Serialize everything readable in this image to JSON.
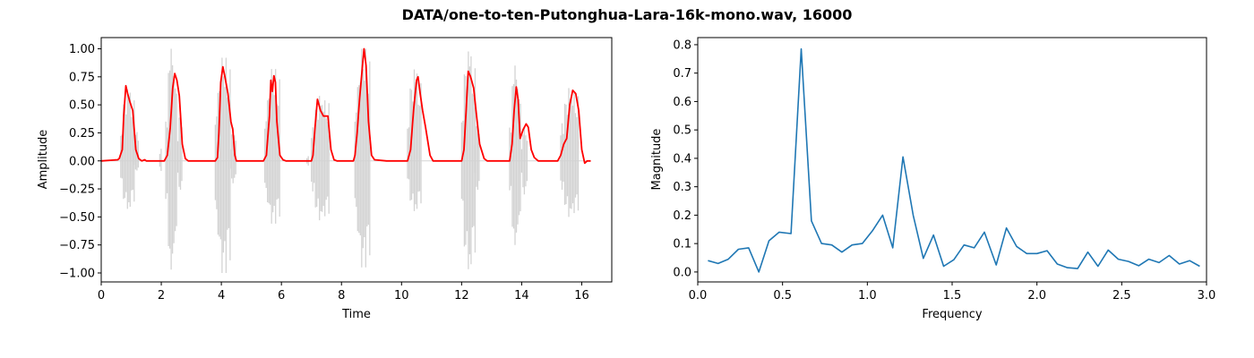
{
  "figure": {
    "title": "DATA/one-to-ten-Putonghua-Lara-16k-mono.wav, 16000"
  },
  "chart_data": [
    {
      "type": "line",
      "xlabel": "Time",
      "ylabel": "Amplitude",
      "xlim": [
        0,
        17
      ],
      "ylim": [
        -1.08,
        1.1
      ],
      "xticks": [
        0,
        2,
        4,
        6,
        8,
        10,
        12,
        14,
        16
      ],
      "yticks": [
        -1.0,
        -0.75,
        -0.5,
        -0.25,
        0.0,
        0.25,
        0.5,
        0.75,
        1.0
      ],
      "ytick_labels": [
        "−1.00",
        "−0.75",
        "−0.50",
        "−0.25",
        "0.00",
        "0.25",
        "0.50",
        "0.75",
        "1.00"
      ],
      "grid": false,
      "colors": {
        "waveform": "#d3d3d3",
        "envelope": "#ff0000"
      },
      "waveform_segments": [
        {
          "start": 0.65,
          "end": 1.1,
          "max": 0.64,
          "min": -0.43
        },
        {
          "start": 1.1,
          "end": 1.25,
          "max": 0.3,
          "min": -0.1
        },
        {
          "start": 1.95,
          "end": 2.0,
          "max": 0.18,
          "min": -0.15
        },
        {
          "start": 2.15,
          "end": 2.55,
          "max": 1.0,
          "min": -0.97
        },
        {
          "start": 2.55,
          "end": 2.7,
          "max": 0.5,
          "min": -0.3
        },
        {
          "start": 3.8,
          "end": 4.3,
          "max": 0.92,
          "min": -1.0
        },
        {
          "start": 4.3,
          "end": 4.5,
          "max": 0.3,
          "min": -0.2
        },
        {
          "start": 5.45,
          "end": 5.95,
          "max": 0.82,
          "min": -0.56
        },
        {
          "start": 6.85,
          "end": 6.9,
          "max": 0.07,
          "min": -0.07
        },
        {
          "start": 7.0,
          "end": 7.6,
          "max": 0.58,
          "min": -0.53
        },
        {
          "start": 8.45,
          "end": 8.95,
          "max": 1.0,
          "min": -0.95
        },
        {
          "start": 10.2,
          "end": 10.65,
          "max": 0.82,
          "min": -0.45
        },
        {
          "start": 12.0,
          "end": 12.45,
          "max": 0.98,
          "min": -0.97
        },
        {
          "start": 12.45,
          "end": 12.6,
          "max": 0.4,
          "min": -0.3
        },
        {
          "start": 13.6,
          "end": 14.0,
          "max": 0.85,
          "min": -0.75
        },
        {
          "start": 14.0,
          "end": 14.2,
          "max": 0.3,
          "min": -0.3
        },
        {
          "start": 15.3,
          "end": 15.9,
          "max": 0.65,
          "min": -0.5
        }
      ],
      "series": [
        {
          "name": "",
          "x": [
            0.0,
            0.55,
            0.6,
            0.7,
            0.75,
            0.82,
            0.88,
            0.95,
            1.05,
            1.15,
            1.25,
            1.35,
            1.45,
            1.5,
            2.1,
            2.2,
            2.3,
            2.38,
            2.45,
            2.52,
            2.6,
            2.7,
            2.8,
            2.9,
            3.0,
            3.8,
            3.87,
            3.92,
            3.98,
            4.05,
            4.12,
            4.22,
            4.32,
            4.38,
            4.45,
            4.5,
            5.4,
            5.5,
            5.6,
            5.65,
            5.7,
            5.75,
            5.8,
            5.85,
            5.95,
            6.05,
            6.15,
            6.3,
            7.0,
            7.05,
            7.12,
            7.2,
            7.3,
            7.4,
            7.55,
            7.65,
            7.75,
            7.85,
            7.95,
            8.4,
            8.45,
            8.52,
            8.6,
            8.7,
            8.75,
            8.82,
            8.9,
            9.0,
            9.1,
            9.5,
            10.2,
            10.3,
            10.4,
            10.5,
            10.55,
            10.62,
            10.7,
            10.8,
            10.95,
            11.05,
            12.0,
            12.08,
            12.15,
            12.22,
            12.3,
            12.4,
            12.5,
            12.6,
            12.75,
            12.85,
            13.6,
            13.68,
            13.75,
            13.82,
            13.88,
            13.95,
            14.05,
            14.15,
            14.22,
            14.32,
            14.42,
            14.55,
            14.65,
            15.2,
            15.3,
            15.4,
            15.5,
            15.6,
            15.7,
            15.8,
            15.9,
            16.0,
            16.1,
            16.18,
            16.25,
            16.3
          ],
          "y": [
            0.0,
            0.01,
            0.02,
            0.1,
            0.4,
            0.67,
            0.6,
            0.53,
            0.45,
            0.1,
            0.02,
            0.0,
            0.01,
            0.0,
            0.0,
            0.05,
            0.3,
            0.65,
            0.78,
            0.72,
            0.58,
            0.15,
            0.02,
            0.0,
            0.0,
            0.0,
            0.03,
            0.25,
            0.7,
            0.84,
            0.75,
            0.6,
            0.35,
            0.28,
            0.05,
            0.0,
            0.0,
            0.05,
            0.4,
            0.72,
            0.62,
            0.76,
            0.7,
            0.35,
            0.05,
            0.01,
            0.0,
            0.0,
            0.0,
            0.05,
            0.3,
            0.55,
            0.45,
            0.4,
            0.4,
            0.1,
            0.01,
            0.0,
            0.0,
            0.0,
            0.05,
            0.25,
            0.55,
            0.85,
            1.0,
            0.85,
            0.35,
            0.05,
            0.01,
            0.0,
            0.0,
            0.1,
            0.45,
            0.72,
            0.75,
            0.6,
            0.45,
            0.3,
            0.05,
            0.0,
            0.0,
            0.1,
            0.45,
            0.8,
            0.75,
            0.65,
            0.4,
            0.15,
            0.02,
            0.0,
            0.0,
            0.15,
            0.45,
            0.66,
            0.55,
            0.2,
            0.28,
            0.33,
            0.3,
            0.1,
            0.03,
            0.0,
            0.0,
            0.0,
            0.05,
            0.15,
            0.2,
            0.5,
            0.63,
            0.6,
            0.45,
            0.1,
            -0.02,
            0.0,
            0.0,
            0.0
          ]
        }
      ]
    },
    {
      "type": "line",
      "xlabel": "Frequency",
      "ylabel": "Magnitude",
      "xlim": [
        0,
        3.0
      ],
      "ylim": [
        -0.035,
        0.825
      ],
      "xticks": [
        0.0,
        0.5,
        1.0,
        1.5,
        2.0,
        2.5,
        3.0
      ],
      "xtick_labels": [
        "0.0",
        "0.5",
        "1.0",
        "1.5",
        "2.0",
        "2.5",
        "3.0"
      ],
      "yticks": [
        0.0,
        0.1,
        0.2,
        0.3,
        0.4,
        0.5,
        0.6,
        0.7,
        0.8
      ],
      "ytick_labels": [
        "0.0",
        "0.1",
        "0.2",
        "0.3",
        "0.4",
        "0.5",
        "0.6",
        "0.7",
        "0.8"
      ],
      "grid": false,
      "colors": {
        "line": "#1f77b4"
      },
      "series": [
        {
          "name": "",
          "x": [
            0.06,
            0.12,
            0.18,
            0.24,
            0.3,
            0.36,
            0.42,
            0.48,
            0.55,
            0.61,
            0.67,
            0.73,
            0.79,
            0.85,
            0.91,
            0.97,
            1.03,
            1.09,
            1.15,
            1.21,
            1.27,
            1.33,
            1.39,
            1.45,
            1.51,
            1.57,
            1.63,
            1.69,
            1.76,
            1.82,
            1.88,
            1.94,
            2.0,
            2.06,
            2.12,
            2.18,
            2.24,
            2.3,
            2.36,
            2.42,
            2.48,
            2.54,
            2.6,
            2.66,
            2.72,
            2.78,
            2.84,
            2.9,
            2.96
          ],
          "y": [
            0.04,
            0.03,
            0.045,
            0.08,
            0.085,
            0.0,
            0.11,
            0.14,
            0.135,
            0.785,
            0.18,
            0.1,
            0.095,
            0.07,
            0.095,
            0.1,
            0.145,
            0.2,
            0.085,
            0.405,
            0.2,
            0.048,
            0.13,
            0.02,
            0.043,
            0.095,
            0.085,
            0.14,
            0.025,
            0.155,
            0.09,
            0.065,
            0.065,
            0.075,
            0.028,
            0.015,
            0.012,
            0.07,
            0.02,
            0.077,
            0.045,
            0.037,
            0.022,
            0.045,
            0.033,
            0.058,
            0.028,
            0.04,
            0.02
          ]
        }
      ]
    }
  ]
}
